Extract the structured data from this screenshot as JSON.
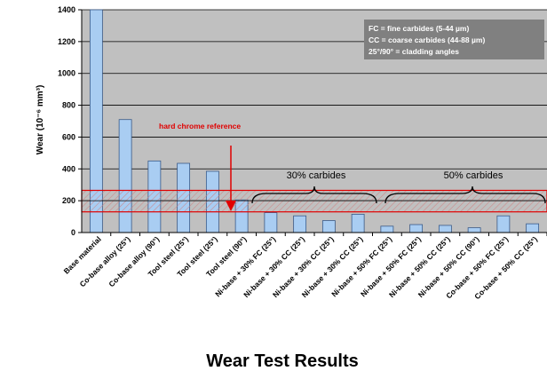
{
  "chart_data": {
    "type": "bar",
    "title": "Wear Test Results",
    "ylabel": "Wear (10⁻⁶ mm³)",
    "ylim": [
      0,
      1400
    ],
    "yticks": [
      0,
      200,
      400,
      600,
      800,
      1000,
      1200,
      1400
    ],
    "grid": "horizontal",
    "categories": [
      "Base material",
      "Co-base alloy (25°)",
      "Co-base alloy (90°)",
      "Tool steel (25°)",
      "Tool steel (25°)",
      "Tool steel (90°)",
      "Ni-base + 30% FC (25°)",
      "Ni-base + 30% CC (25°)",
      "Ni-base + 30% CC (25°)",
      "Ni-base + 30% CC (25°)",
      "Ni-base + 50% FC (25°)",
      "Ni-base + 50% FC (25°)",
      "Ni-base + 50% CC (25°)",
      "Ni-base + 50% CC (90°)",
      "Co-base + 50% FC (25°)",
      "Co-base + 50% CC (25°)"
    ],
    "values": [
      1400,
      710,
      450,
      435,
      385,
      205,
      125,
      105,
      75,
      115,
      40,
      50,
      45,
      30,
      105,
      55
    ],
    "bar_color": "#a9cdf2",
    "reference_band": {
      "label": "hard chrome reference",
      "low": 130,
      "high": 265,
      "center": 200,
      "color": "#e00000"
    },
    "legend": {
      "position": "top-right",
      "lines": [
        "FC = fine carbides (5-44 µm)",
        "CC = coarse carbides (44-88 µm)",
        "25°/90° = cladding angles"
      ]
    },
    "annotations": [
      "30% carbides",
      "50% carbides"
    ]
  }
}
